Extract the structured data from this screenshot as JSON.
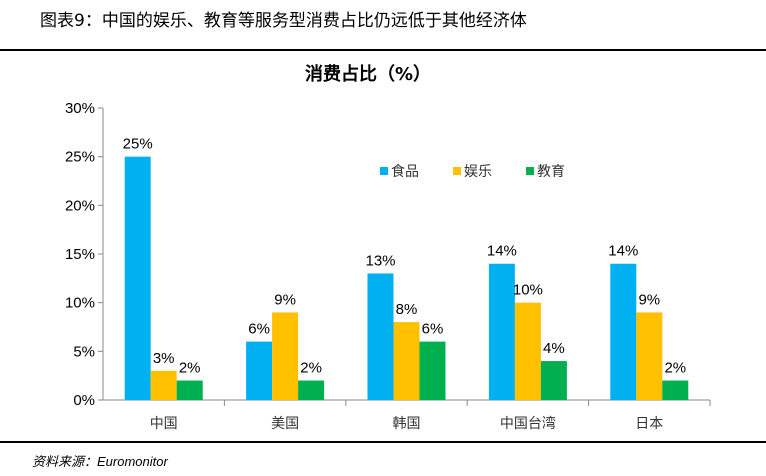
{
  "figure_title": "图表9：中国的娱乐、教育等服务型消费占比仍远低于其他经济体",
  "source": "资料来源：Euromonitor",
  "chart_data": {
    "type": "bar",
    "title": "消费占比（%）",
    "categories": [
      "中国",
      "美国",
      "韩国",
      "中国台湾",
      "日本"
    ],
    "series": [
      {
        "name": "食品",
        "color": "#00b0f0",
        "values": [
          25,
          6,
          13,
          14,
          14
        ]
      },
      {
        "name": "娱乐",
        "color": "#ffc000",
        "values": [
          3,
          9,
          8,
          10,
          9
        ]
      },
      {
        "name": "教育",
        "color": "#00b050",
        "values": [
          2,
          2,
          6,
          4,
          2
        ]
      }
    ],
    "ylim": [
      0,
      30
    ],
    "yticks": [
      "0%",
      "5%",
      "10%",
      "15%",
      "20%",
      "25%",
      "30%"
    ],
    "value_suffix": "%",
    "legend": "top-center",
    "grid": false,
    "xlabel": "",
    "ylabel": ""
  }
}
